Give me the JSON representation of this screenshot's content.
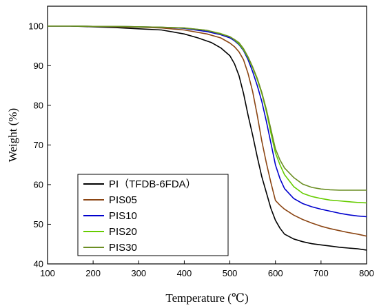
{
  "chart_data": {
    "type": "line",
    "xlabel": "Temperature (℃)",
    "ylabel": "Weight (%)",
    "xlim": [
      100,
      800
    ],
    "ylim": [
      40,
      105
    ],
    "xticks": [
      100,
      200,
      300,
      400,
      500,
      600,
      700,
      800
    ],
    "yticks": [
      40,
      50,
      60,
      70,
      80,
      90,
      100
    ],
    "grid": false,
    "legend_position": "bottom-left",
    "series": [
      {
        "name": "PI（TFDB-6FDA）",
        "color": "#000000",
        "x": [
          100,
          150,
          200,
          250,
          300,
          350,
          400,
          430,
          460,
          480,
          500,
          510,
          520,
          530,
          540,
          550,
          560,
          570,
          580,
          590,
          600,
          610,
          620,
          640,
          660,
          680,
          700,
          720,
          740,
          760,
          780,
          800
        ],
        "y": [
          100,
          100,
          99.8,
          99.6,
          99.3,
          99.0,
          98.0,
          97.0,
          95.8,
          94.5,
          92.5,
          90.5,
          87.5,
          83,
          77.5,
          72.5,
          67,
          62,
          58,
          54,
          51,
          49,
          47.5,
          46.3,
          45.6,
          45.1,
          44.8,
          44.5,
          44.2,
          44.0,
          43.8,
          43.5
        ]
      },
      {
        "name": "PIS05",
        "color": "#8B4513",
        "x": [
          100,
          150,
          200,
          250,
          300,
          350,
          400,
          450,
          480,
          500,
          510,
          520,
          530,
          540,
          550,
          560,
          570,
          580,
          590,
          600,
          610,
          620,
          640,
          660,
          680,
          700,
          720,
          740,
          760,
          780,
          800
        ],
        "y": [
          100,
          100,
          99.9,
          99.8,
          99.7,
          99.5,
          99.0,
          98.0,
          97.0,
          95.7,
          94.8,
          93.5,
          91.5,
          88,
          83.5,
          77.5,
          71,
          65.5,
          60.5,
          56,
          54.8,
          53.8,
          52.3,
          51.2,
          50.3,
          49.5,
          48.9,
          48.4,
          47.9,
          47.5,
          47.0
        ]
      },
      {
        "name": "PIS10",
        "color": "#0000CD",
        "x": [
          100,
          150,
          200,
          250,
          300,
          350,
          400,
          450,
          480,
          500,
          510,
          520,
          530,
          540,
          550,
          560,
          570,
          580,
          590,
          600,
          610,
          620,
          640,
          660,
          680,
          700,
          720,
          740,
          760,
          780,
          800
        ],
        "y": [
          100,
          100,
          99.9,
          99.9,
          99.8,
          99.7,
          99.4,
          98.6,
          97.8,
          97.0,
          96.3,
          95.3,
          93.8,
          91.5,
          88.5,
          85,
          81,
          76,
          70.5,
          65,
          61.5,
          59,
          56.5,
          55.2,
          54.4,
          53.8,
          53.3,
          52.8,
          52.4,
          52.1,
          51.9
        ]
      },
      {
        "name": "PIS20",
        "color": "#66CC00",
        "x": [
          100,
          150,
          200,
          250,
          300,
          350,
          400,
          450,
          480,
          500,
          510,
          520,
          530,
          540,
          550,
          560,
          570,
          580,
          590,
          600,
          610,
          620,
          640,
          660,
          680,
          700,
          720,
          740,
          760,
          780,
          800
        ],
        "y": [
          100,
          100,
          99.9,
          99.9,
          99.8,
          99.7,
          99.5,
          98.9,
          98.1,
          97.3,
          96.5,
          95.5,
          94,
          92,
          89.5,
          86.5,
          83,
          78.5,
          73,
          68,
          65,
          62.5,
          59.5,
          57.8,
          57.0,
          56.5,
          56.1,
          55.9,
          55.7,
          55.5,
          55.4
        ]
      },
      {
        "name": "PIS30",
        "color": "#6B8E23",
        "x": [
          100,
          150,
          200,
          250,
          300,
          350,
          400,
          450,
          480,
          500,
          510,
          520,
          530,
          540,
          550,
          560,
          570,
          580,
          590,
          600,
          610,
          620,
          640,
          660,
          680,
          700,
          720,
          740,
          760,
          780,
          800
        ],
        "y": [
          100,
          100,
          99.9,
          99.9,
          99.8,
          99.7,
          99.5,
          98.9,
          98.0,
          97.3,
          96.6,
          95.8,
          94.3,
          92.2,
          89.7,
          86.8,
          83.3,
          79,
          74,
          69,
          66.2,
          64.2,
          61.8,
          60.1,
          59.3,
          58.9,
          58.7,
          58.6,
          58.6,
          58.6,
          58.6
        ]
      }
    ]
  }
}
